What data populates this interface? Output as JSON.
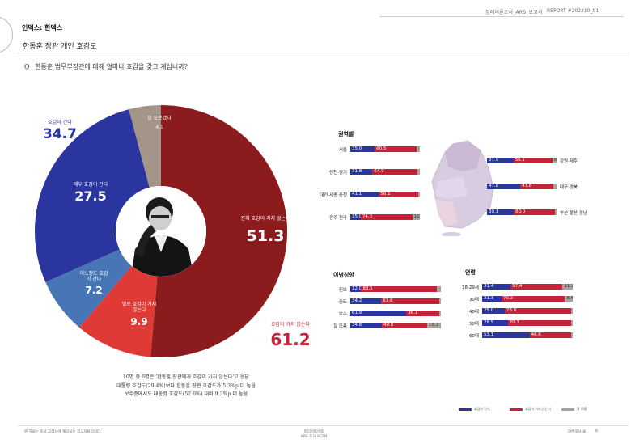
{
  "header": {
    "report_title": "정례여론조사_ARS_보고서",
    "report_code": "REPORT #202210_01"
  },
  "section_label": "인덱스: 한덱스",
  "subtitle": "한동훈 장관 개인 호감도",
  "question": "Q_ 한동훈 법무부장관에 대해 얼마나 호감을 갖고 계십니까?",
  "donut": {
    "total_positive_label": "호감이 간다",
    "total_positive_value": "34.7",
    "total_negative_label": "호감이 가지 않는다",
    "total_negative_value": "61.2",
    "slices": [
      {
        "label": "매우 호감이 간다",
        "value": 27.5,
        "value_text": "27.5",
        "color": "#2b35a0"
      },
      {
        "label": "어느정도 호감이 간다",
        "value": 7.2,
        "value_text": "7.2",
        "color": "#4775b5"
      },
      {
        "label": "별로 호감이 가지않는다",
        "value": 9.9,
        "value_text": "9.9",
        "color": "#e03a36"
      },
      {
        "label": "전혀 호감이 가지 않는다",
        "value": 51.3,
        "value_text": "51.3",
        "color": "#8b1b1c"
      },
      {
        "label": "잘 모르겠다",
        "value": 4.1,
        "value_text": "4.1",
        "color": "#a49589"
      }
    ]
  },
  "note_lines": [
    "10명 중 6명은 '한동훈 장관에게 호감이 가지 않는다'고 응답",
    "대통령 호감도(29.4%)보다 한동훈 장관 호감도가 5.3%p 더 높음",
    "보수층에서도 대통령 호감도(52.6%) 대비 9.3%p 더 높음"
  ],
  "region": {
    "title": "권역별",
    "left_rows": [
      {
        "label": "서울",
        "pos": 35.0,
        "pos_text": "35.0",
        "neg": 60.5,
        "neg_text": "60.5",
        "dk": 4.5,
        "dk_text": ""
      },
      {
        "label": "인천·경기",
        "pos": 31.8,
        "pos_text": "31.8",
        "neg": 64.9,
        "neg_text": "64.9",
        "dk": 3.3,
        "dk_text": ""
      },
      {
        "label": "대전·세종·충청",
        "pos": 41.1,
        "pos_text": "41.1",
        "neg": 56.1,
        "neg_text": "56.1",
        "dk": 2.8,
        "dk_text": ""
      },
      {
        "label": "광주·전라",
        "pos": 15.0,
        "pos_text": "15.0",
        "neg": 74.3,
        "neg_text": "74.3",
        "dk": 10.7,
        "dk_text": "10.7"
      }
    ],
    "right_rows": [
      {
        "label": "강원·제주",
        "pos": 37.9,
        "pos_text": "37.9",
        "neg": 56.1,
        "neg_text": "56.1",
        "dk": 6.0,
        "dk_text": "6.0"
      },
      {
        "label": "대구·경북",
        "pos": 47.8,
        "pos_text": "47.8",
        "neg": 47.8,
        "neg_text": "47.8",
        "dk": 4.4,
        "dk_text": ""
      },
      {
        "label": "부산·울산·경남",
        "pos": 39.1,
        "pos_text": "39.1",
        "neg": 60.0,
        "neg_text": "60.0",
        "dk": 0.9,
        "dk_text": ""
      }
    ]
  },
  "ideology": {
    "title": "이념성향",
    "rows": [
      {
        "label": "진보",
        "pos": 12.0,
        "pos_text": "12.0",
        "neg": 83.5,
        "neg_text": "83.5",
        "dk": 4.5,
        "dk_text": ""
      },
      {
        "label": "중도",
        "pos": 34.2,
        "pos_text": "34.2",
        "neg": 63.6,
        "neg_text": "63.6",
        "dk": 2.2,
        "dk_text": ""
      },
      {
        "label": "보수",
        "pos": 61.9,
        "pos_text": "61.9",
        "neg": 36.1,
        "neg_text": "36.1",
        "dk": 2.0,
        "dk_text": ""
      },
      {
        "label": "잘 모름",
        "pos": 34.8,
        "pos_text": "34.8",
        "neg": 49.8,
        "neg_text": "49.8",
        "dk": 15.3,
        "dk_text": "15.3"
      }
    ]
  },
  "age": {
    "title": "연령",
    "rows": [
      {
        "label": "18-29세",
        "pos": 31.4,
        "pos_text": "31.4",
        "neg": 57.4,
        "neg_text": "57.4",
        "dk": 11.2,
        "dk_text": "11.2"
      },
      {
        "label": "30대",
        "pos": 21.3,
        "pos_text": "21.3",
        "neg": 70.2,
        "neg_text": "70.2",
        "dk": 8.5,
        "dk_text": "8.5"
      },
      {
        "label": "40대",
        "pos": 25.0,
        "pos_text": "25.0",
        "neg": 73.0,
        "neg_text": "73.0",
        "dk": 2.0,
        "dk_text": ""
      },
      {
        "label": "50대",
        "pos": 28.5,
        "pos_text": "28.5",
        "neg": 70.7,
        "neg_text": "70.7",
        "dk": 0.8,
        "dk_text": ""
      },
      {
        "label": "60대",
        "pos": 53.1,
        "pos_text": "53.1",
        "neg": 46.6,
        "neg_text": "46.6",
        "dk": 0.3,
        "dk_text": ""
      }
    ]
  },
  "legend": [
    {
      "label": "호감이 간다",
      "color": "#2b35a0"
    },
    {
      "label": "호감이 가지 않는다",
      "color": "#c3243a"
    },
    {
      "label": "잘 모름",
      "color": "#a9a39e"
    }
  ],
  "footer": {
    "left": "본 자료는 조사 고객사에 제공되는 참고자료입니다.",
    "center_line1": "미디어토마토",
    "center_line2": "ARS 조사 보고서",
    "right": "여론조사 꽃",
    "page": "8"
  }
}
